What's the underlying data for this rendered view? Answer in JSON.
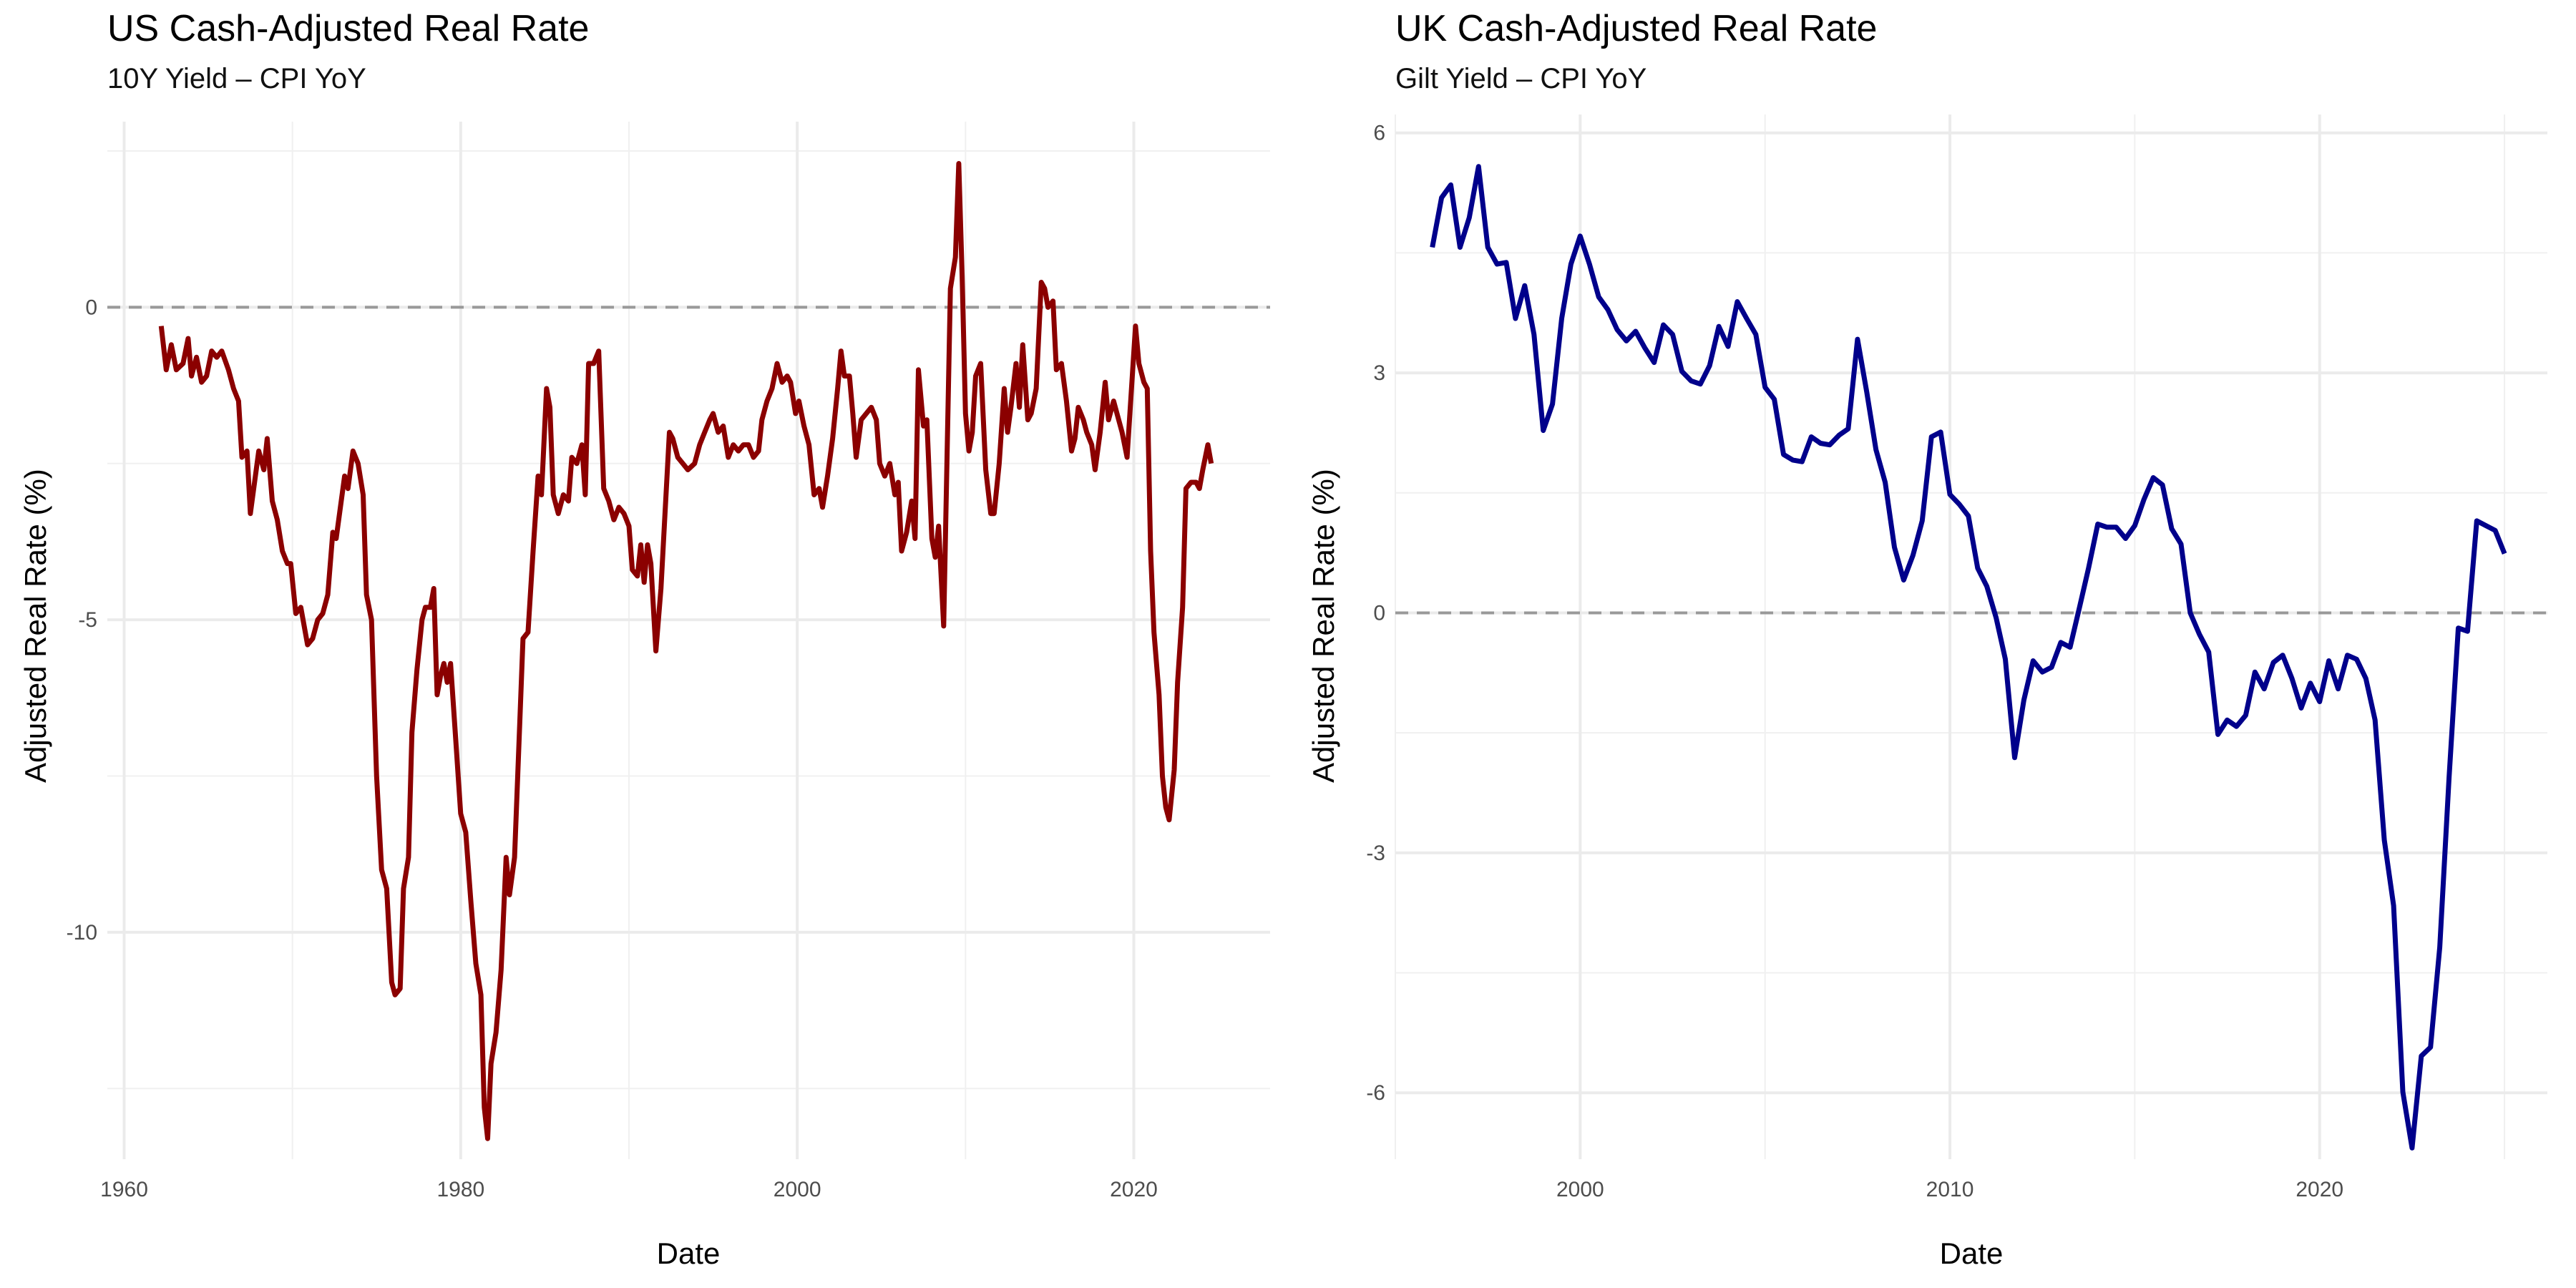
{
  "chart_data": [
    {
      "type": "line",
      "title": "US Cash-Adjusted Real Rate",
      "subtitle": "10Y Yield – CPI YoY",
      "xlabel": "Date",
      "ylabel": "Adjusted Real Rate (%)",
      "xlim": [
        1959.0,
        2028.1
      ],
      "ylim": [
        -13.63,
        2.97
      ],
      "xticks": [
        1960,
        1980,
        2000,
        2020
      ],
      "xtick_labels": [
        "1960",
        "1980",
        "2000",
        "2020"
      ],
      "yticks": [
        -10,
        -5,
        0
      ],
      "ytick_labels": [
        "-10",
        "-5",
        "0"
      ],
      "reference_line": 0,
      "grid": true,
      "color": "#8B0000",
      "points": [
        [
          1962.2,
          -0.3
        ],
        [
          1962.5,
          -1.0
        ],
        [
          1962.8,
          -0.6
        ],
        [
          1963.1,
          -1.0
        ],
        [
          1963.5,
          -0.9
        ],
        [
          1963.8,
          -0.5
        ],
        [
          1964.0,
          -1.1
        ],
        [
          1964.3,
          -0.8
        ],
        [
          1964.6,
          -1.2
        ],
        [
          1964.9,
          -1.1
        ],
        [
          1965.2,
          -0.7
        ],
        [
          1965.5,
          -0.8
        ],
        [
          1965.8,
          -0.7
        ],
        [
          1966.2,
          -1.0
        ],
        [
          1966.5,
          -1.3
        ],
        [
          1966.8,
          -1.5
        ],
        [
          1967.0,
          -2.4
        ],
        [
          1967.3,
          -2.3
        ],
        [
          1967.5,
          -3.3
        ],
        [
          1968.0,
          -2.3
        ],
        [
          1968.3,
          -2.6
        ],
        [
          1968.5,
          -2.1
        ],
        [
          1968.8,
          -3.1
        ],
        [
          1969.1,
          -3.4
        ],
        [
          1969.4,
          -3.9
        ],
        [
          1969.7,
          -4.1
        ],
        [
          1969.9,
          -4.1
        ],
        [
          1970.2,
          -4.9
        ],
        [
          1970.5,
          -4.8
        ],
        [
          1970.9,
          -5.4
        ],
        [
          1971.2,
          -5.3
        ],
        [
          1971.5,
          -5.0
        ],
        [
          1971.8,
          -4.9
        ],
        [
          1972.1,
          -4.6
        ],
        [
          1972.4,
          -3.6
        ],
        [
          1972.6,
          -3.7
        ],
        [
          1973.1,
          -2.7
        ],
        [
          1973.3,
          -2.9
        ],
        [
          1973.6,
          -2.3
        ],
        [
          1973.9,
          -2.5
        ],
        [
          1974.2,
          -3.0
        ],
        [
          1974.4,
          -4.6
        ],
        [
          1974.7,
          -5.0
        ],
        [
          1975.0,
          -7.5
        ],
        [
          1975.3,
          -9.0
        ],
        [
          1975.6,
          -9.3
        ],
        [
          1975.9,
          -10.8
        ],
        [
          1976.1,
          -11.0
        ],
        [
          1976.4,
          -10.9
        ],
        [
          1976.6,
          -9.3
        ],
        [
          1976.9,
          -8.8
        ],
        [
          1977.1,
          -6.8
        ],
        [
          1977.4,
          -5.8
        ],
        [
          1977.7,
          -5.0
        ],
        [
          1977.9,
          -4.8
        ],
        [
          1978.2,
          -4.8
        ],
        [
          1978.4,
          -4.5
        ],
        [
          1978.6,
          -6.2
        ],
        [
          1978.8,
          -5.9
        ],
        [
          1979.0,
          -5.7
        ],
        [
          1979.2,
          -6.0
        ],
        [
          1979.4,
          -5.7
        ],
        [
          1979.7,
          -6.9
        ],
        [
          1980.0,
          -8.1
        ],
        [
          1980.3,
          -8.4
        ],
        [
          1980.6,
          -9.5
        ],
        [
          1980.9,
          -10.5
        ],
        [
          1981.2,
          -11.0
        ],
        [
          1981.4,
          -12.8
        ],
        [
          1981.6,
          -13.3
        ],
        [
          1981.8,
          -12.1
        ],
        [
          1982.1,
          -11.6
        ],
        [
          1982.4,
          -10.6
        ],
        [
          1982.7,
          -8.8
        ],
        [
          1982.9,
          -9.4
        ],
        [
          1983.2,
          -8.8
        ],
        [
          1983.5,
          -6.7
        ],
        [
          1983.7,
          -5.3
        ],
        [
          1984.0,
          -5.2
        ],
        [
          1984.3,
          -3.9
        ],
        [
          1984.6,
          -2.7
        ],
        [
          1984.8,
          -3.0
        ],
        [
          1985.1,
          -1.3
        ],
        [
          1985.3,
          -1.6
        ],
        [
          1985.5,
          -3.0
        ],
        [
          1985.8,
          -3.3
        ],
        [
          1986.1,
          -3.0
        ],
        [
          1986.4,
          -3.1
        ],
        [
          1986.6,
          -2.4
        ],
        [
          1986.9,
          -2.5
        ],
        [
          1987.2,
          -2.2
        ],
        [
          1987.4,
          -3.0
        ],
        [
          1987.6,
          -0.9
        ],
        [
          1987.9,
          -0.9
        ],
        [
          1988.2,
          -0.7
        ],
        [
          1988.5,
          -2.9
        ],
        [
          1988.8,
          -3.1
        ],
        [
          1989.1,
          -3.4
        ],
        [
          1989.4,
          -3.2
        ],
        [
          1989.7,
          -3.3
        ],
        [
          1990.0,
          -3.5
        ],
        [
          1990.2,
          -4.2
        ],
        [
          1990.5,
          -4.3
        ],
        [
          1990.7,
          -3.8
        ],
        [
          1990.9,
          -4.4
        ],
        [
          1991.1,
          -3.8
        ],
        [
          1991.3,
          -4.1
        ],
        [
          1991.6,
          -5.5
        ],
        [
          1991.9,
          -4.5
        ],
        [
          1992.1,
          -3.5
        ],
        [
          1992.4,
          -2.0
        ],
        [
          1992.6,
          -2.1
        ],
        [
          1992.9,
          -2.4
        ],
        [
          1993.2,
          -2.5
        ],
        [
          1993.5,
          -2.6
        ],
        [
          1993.9,
          -2.5
        ],
        [
          1994.2,
          -2.2
        ],
        [
          1994.5,
          -2.0
        ],
        [
          1994.8,
          -1.8
        ],
        [
          1995.0,
          -1.7
        ],
        [
          1995.3,
          -2.0
        ],
        [
          1995.6,
          -1.9
        ],
        [
          1995.9,
          -2.4
        ],
        [
          1996.2,
          -2.2
        ],
        [
          1996.5,
          -2.3
        ],
        [
          1996.8,
          -2.2
        ],
        [
          1997.1,
          -2.2
        ],
        [
          1997.4,
          -2.4
        ],
        [
          1997.7,
          -2.3
        ],
        [
          1997.9,
          -1.8
        ],
        [
          1998.2,
          -1.5
        ],
        [
          1998.5,
          -1.3
        ],
        [
          1998.8,
          -0.9
        ],
        [
          1999.1,
          -1.2
        ],
        [
          1999.4,
          -1.1
        ],
        [
          1999.6,
          -1.2
        ],
        [
          1999.9,
          -1.7
        ],
        [
          2000.1,
          -1.5
        ],
        [
          2000.4,
          -1.9
        ],
        [
          2000.7,
          -2.2
        ],
        [
          2001.0,
          -3.0
        ],
        [
          2001.3,
          -2.9
        ],
        [
          2001.5,
          -3.2
        ],
        [
          2001.8,
          -2.7
        ],
        [
          2002.1,
          -2.1
        ],
        [
          2002.4,
          -1.3
        ],
        [
          2002.6,
          -0.7
        ],
        [
          2002.8,
          -1.1
        ],
        [
          2003.1,
          -1.1
        ],
        [
          2003.3,
          -1.7
        ],
        [
          2003.5,
          -2.4
        ],
        [
          2003.8,
          -1.8
        ],
        [
          2004.1,
          -1.7
        ],
        [
          2004.4,
          -1.6
        ],
        [
          2004.7,
          -1.8
        ],
        [
          2004.9,
          -2.5
        ],
        [
          2005.2,
          -2.7
        ],
        [
          2005.5,
          -2.5
        ],
        [
          2005.8,
          -3.0
        ],
        [
          2006.0,
          -2.8
        ],
        [
          2006.2,
          -3.9
        ],
        [
          2006.5,
          -3.6
        ],
        [
          2006.8,
          -3.1
        ],
        [
          2007.0,
          -3.7
        ],
        [
          2007.2,
          -1.0
        ],
        [
          2007.5,
          -1.9
        ],
        [
          2007.7,
          -1.8
        ],
        [
          2008.0,
          -3.7
        ],
        [
          2008.2,
          -4.0
        ],
        [
          2008.4,
          -3.5
        ],
        [
          2008.7,
          -5.1
        ],
        [
          2009.1,
          0.3
        ],
        [
          2009.4,
          0.8
        ],
        [
          2009.6,
          2.3
        ],
        [
          2009.8,
          0.5
        ],
        [
          2010.0,
          -1.7
        ],
        [
          2010.2,
          -2.3
        ],
        [
          2010.4,
          -2.0
        ],
        [
          2010.6,
          -1.1
        ],
        [
          2010.9,
          -0.9
        ],
        [
          2011.2,
          -2.6
        ],
        [
          2011.5,
          -3.3
        ],
        [
          2011.7,
          -3.3
        ],
        [
          2012.0,
          -2.5
        ],
        [
          2012.3,
          -1.3
        ],
        [
          2012.5,
          -2.0
        ],
        [
          2012.7,
          -1.6
        ],
        [
          2013.0,
          -0.9
        ],
        [
          2013.2,
          -1.6
        ],
        [
          2013.4,
          -0.6
        ],
        [
          2013.7,
          -1.8
        ],
        [
          2013.9,
          -1.7
        ],
        [
          2014.2,
          -1.3
        ],
        [
          2014.5,
          0.4
        ],
        [
          2014.7,
          0.3
        ],
        [
          2014.9,
          0.0
        ],
        [
          2015.2,
          0.1
        ],
        [
          2015.4,
          -1.0
        ],
        [
          2015.7,
          -0.9
        ],
        [
          2016.0,
          -1.5
        ],
        [
          2016.3,
          -2.3
        ],
        [
          2016.5,
          -2.1
        ],
        [
          2016.7,
          -1.6
        ],
        [
          2017.0,
          -1.8
        ],
        [
          2017.2,
          -2.0
        ],
        [
          2017.5,
          -2.2
        ],
        [
          2017.7,
          -2.6
        ],
        [
          2018.0,
          -2.0
        ],
        [
          2018.3,
          -1.2
        ],
        [
          2018.5,
          -1.8
        ],
        [
          2018.8,
          -1.5
        ],
        [
          2019.0,
          -1.7
        ],
        [
          2019.3,
          -2.0
        ],
        [
          2019.6,
          -2.4
        ],
        [
          2020.1,
          -0.3
        ],
        [
          2020.3,
          -0.9
        ],
        [
          2020.6,
          -1.2
        ],
        [
          2020.8,
          -1.3
        ],
        [
          2021.0,
          -3.9
        ],
        [
          2021.2,
          -5.2
        ],
        [
          2021.5,
          -6.2
        ],
        [
          2021.7,
          -7.5
        ],
        [
          2021.9,
          -8.0
        ],
        [
          2022.1,
          -8.2
        ],
        [
          2022.4,
          -7.4
        ],
        [
          2022.6,
          -6.0
        ],
        [
          2022.9,
          -4.8
        ],
        [
          2023.1,
          -2.9
        ],
        [
          2023.4,
          -2.8
        ],
        [
          2023.7,
          -2.8
        ],
        [
          2023.9,
          -2.9
        ],
        [
          2024.1,
          -2.6
        ],
        [
          2024.4,
          -2.2
        ],
        [
          2024.6,
          -2.5
        ]
      ]
    },
    {
      "type": "line",
      "title": "UK Cash-Adjusted Real Rate",
      "subtitle": "Gilt Yield – CPI YoY",
      "xlabel": "Date",
      "ylabel": "Adjusted Real Rate (%)",
      "xlim": [
        1995.0,
        2026.16
      ],
      "ylim": [
        -6.83,
        6.23
      ],
      "xticks": [
        2000,
        2010,
        2020
      ],
      "xtick_labels": [
        "2000",
        "2010",
        "2020"
      ],
      "yticks": [
        -6,
        -3,
        0,
        3,
        6
      ],
      "ytick_labels": [
        "-6",
        "-3",
        "0",
        "3",
        "6"
      ],
      "reference_line": 0,
      "grid": true,
      "color": "#00008B",
      "x_start": 1996.0,
      "x_step": 0.25,
      "values": [
        4.57,
        5.19,
        5.35,
        4.57,
        4.94,
        5.58,
        4.57,
        4.36,
        4.38,
        3.68,
        4.09,
        3.48,
        2.28,
        2.61,
        3.68,
        4.36,
        4.71,
        4.36,
        3.95,
        3.79,
        3.54,
        3.4,
        3.52,
        3.31,
        3.13,
        3.6,
        3.48,
        3.02,
        2.9,
        2.86,
        3.09,
        3.58,
        3.33,
        3.89,
        3.68,
        3.48,
        2.82,
        2.67,
        1.98,
        1.91,
        1.89,
        2.2,
        2.12,
        2.1,
        2.22,
        2.3,
        3.42,
        2.76,
        2.04,
        1.63,
        0.82,
        0.41,
        0.72,
        1.15,
        2.2,
        2.26,
        1.48,
        1.36,
        1.21,
        0.56,
        0.33,
        -0.06,
        -0.58,
        -1.81,
        -1.09,
        -0.6,
        -0.74,
        -0.68,
        -0.37,
        -0.43,
        0.06,
        0.56,
        1.11,
        1.07,
        1.07,
        0.93,
        1.09,
        1.42,
        1.69,
        1.6,
        1.05,
        0.86,
        0.0,
        -0.27,
        -0.49,
        -1.52,
        -1.34,
        -1.42,
        -1.28,
        -0.74,
        -0.95,
        -0.62,
        -0.53,
        -0.82,
        -1.19,
        -0.88,
        -1.11,
        -0.6,
        -0.95,
        -0.53,
        -0.58,
        -0.82,
        -1.34,
        -2.84,
        -3.66,
        -5.99,
        -6.69,
        -5.54,
        -5.43,
        -4.18,
        -2.06,
        -0.19,
        -0.23,
        1.15,
        1.09,
        1.03,
        0.74
      ]
    }
  ]
}
